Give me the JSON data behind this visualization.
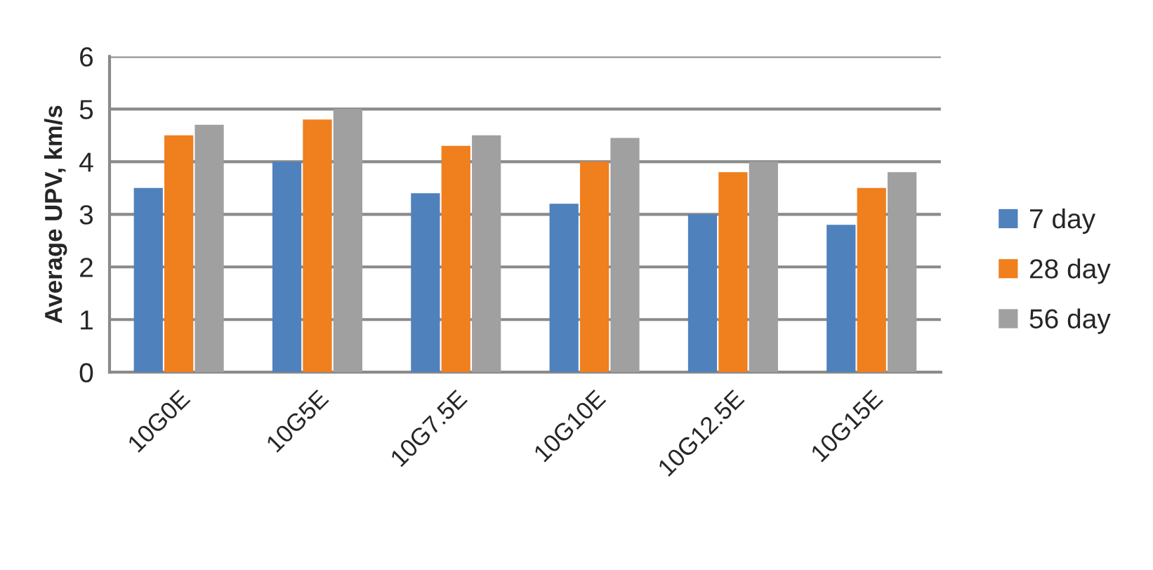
{
  "chart_data": {
    "type": "bar",
    "ylabel": "Average UPV, km/s",
    "categories": [
      "10G0E",
      "10G5E",
      "10G7.5E",
      "10G10E",
      "10G12.5E",
      "10G15E"
    ],
    "series": [
      {
        "name": "7 day",
        "color": "#4f81bd",
        "values": [
          3.5,
          4.0,
          3.4,
          3.2,
          3.0,
          2.8
        ]
      },
      {
        "name": "28 day",
        "color": "#f07f1e",
        "values": [
          4.5,
          4.8,
          4.3,
          4.0,
          3.8,
          3.5
        ]
      },
      {
        "name": "56 day",
        "color": "#a0a0a0",
        "values": [
          4.7,
          5.0,
          4.5,
          4.45,
          4.0,
          3.8
        ]
      }
    ],
    "ylim": [
      0,
      6
    ],
    "yticks": [
      0,
      1,
      2,
      3,
      4,
      5,
      6
    ],
    "grid": "y",
    "legend": "right"
  }
}
